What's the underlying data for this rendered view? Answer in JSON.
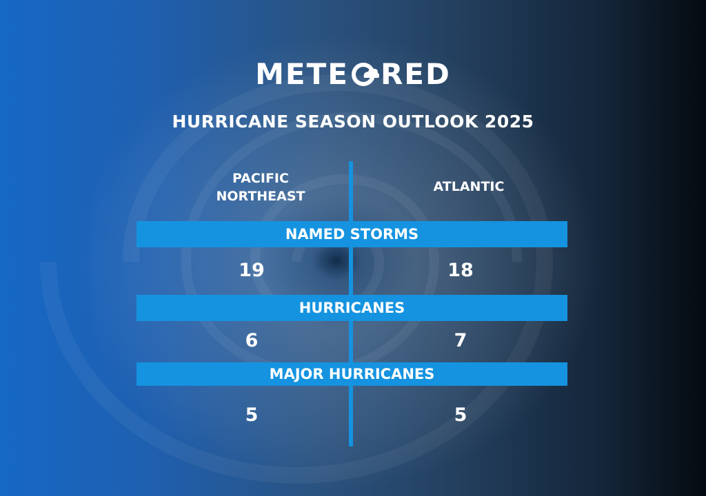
{
  "brand": {
    "logo_text_before": "METE",
    "logo_text_after": "RED",
    "logo_mark": "cloud-o-icon"
  },
  "title": "HURRICANE SEASON OUTLOOK 2025",
  "columns": {
    "left": "PACIFIC\nNORTHEAST",
    "right": "ATLANTIC"
  },
  "rows": [
    {
      "label": "NAMED STORMS",
      "left": "19",
      "right": "18"
    },
    {
      "label": "HURRICANES",
      "left": "6",
      "right": "7"
    },
    {
      "label": "MAJOR HURRICANES",
      "left": "5",
      "right": "5"
    }
  ],
  "colors": {
    "band": "#1593e0",
    "text": "#ffffff",
    "background_left": "#1668c6",
    "background_right": "#050a10"
  },
  "background_image": "satellite-hurricane-photo"
}
